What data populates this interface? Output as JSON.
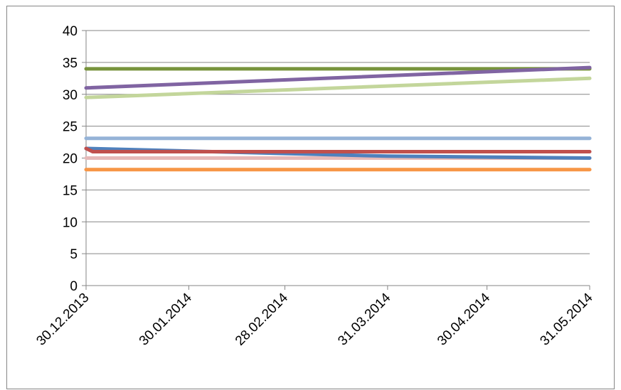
{
  "chart_data": {
    "type": "line",
    "title": "",
    "xlabel": "",
    "ylabel": "",
    "x": [
      "2013-12-30",
      "2014-01-30",
      "2014-02-28",
      "2014-03-31",
      "2014-04-30",
      "2014-05-31"
    ],
    "x_tick_labels": [
      "30.12.2013",
      "30.01.2014",
      "28.02.2014",
      "31.03.2014",
      "30.04.2014",
      "31.05.2014"
    ],
    "ylim": [
      0,
      40
    ],
    "y_ticks": [
      0,
      5,
      10,
      15,
      20,
      25,
      30,
      35,
      40
    ],
    "grid": true,
    "legend": "none",
    "series": [
      {
        "color": "#F79646",
        "points": [
          [
            "2013-12-30",
            18.2
          ],
          [
            "2014-05-31",
            18.2
          ]
        ]
      },
      {
        "color": "#E6B9B8",
        "points": [
          [
            "2013-12-30",
            20.0
          ],
          [
            "2014-05-31",
            20.0
          ]
        ]
      },
      {
        "color": "#4F81BD",
        "points": [
          [
            "2013-12-30",
            21.5
          ],
          [
            "2014-03-31",
            20.3
          ],
          [
            "2014-05-31",
            20.0
          ]
        ]
      },
      {
        "color": "#C0504D",
        "points": [
          [
            "2013-12-30",
            21.5
          ],
          [
            "2014-01-01",
            21.0
          ],
          [
            "2014-05-31",
            21.0
          ]
        ]
      },
      {
        "color": "#95B3D7",
        "points": [
          [
            "2013-12-30",
            23.1
          ],
          [
            "2014-05-31",
            23.1
          ]
        ]
      },
      {
        "color": "#C3D69B",
        "points": [
          [
            "2013-12-30",
            29.5
          ],
          [
            "2014-05-31",
            32.5
          ]
        ]
      },
      {
        "color": "#77933C",
        "points": [
          [
            "2013-12-30",
            34.0
          ],
          [
            "2014-05-31",
            34.0
          ]
        ]
      },
      {
        "color": "#8064A2",
        "points": [
          [
            "2013-12-30",
            31.0
          ],
          [
            "2014-05-31",
            34.2
          ]
        ]
      }
    ]
  }
}
